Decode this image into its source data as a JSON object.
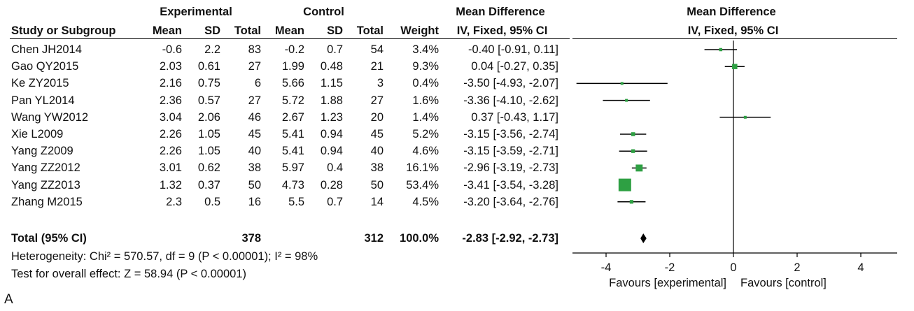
{
  "panel_label": "A",
  "headers": {
    "group_experimental": "Experimental",
    "group_control": "Control",
    "group_md": "Mean Difference",
    "group_plot": "Mean Difference",
    "study": "Study or Subgroup",
    "mean": "Mean",
    "sd": "SD",
    "total": "Total",
    "weight": "Weight",
    "method": "IV, Fixed, 95% CI",
    "plot_method": "IV, Fixed, 95% CI"
  },
  "totals_row": {
    "label": "Total (95% CI)",
    "exp_total": "378",
    "ctrl_total": "312",
    "weight": "100.0%",
    "ci_text": "-2.83 [-2.92, -2.73]"
  },
  "heterogeneity": "Heterogeneity: Chi² = 570.57, df = 9 (P < 0.00001); I² = 98%",
  "overall_effect": "Test for overall effect: Z = 58.94 (P < 0.00001)",
  "chart_data": {
    "type": "forest",
    "xlim": [
      -5,
      5
    ],
    "x_ticks": [
      -4,
      -2,
      0,
      2,
      4
    ],
    "x_tick_labels": [
      "-4",
      "-2",
      "0",
      "2",
      "4"
    ],
    "favours_left": "Favours [experimental]",
    "favours_right": "Favours [control]",
    "studies": [
      {
        "name": "Chen JH2014",
        "exp_mean": "-0.6",
        "exp_sd": "2.2",
        "exp_total": "83",
        "ctrl_mean": "-0.2",
        "ctrl_sd": "0.7",
        "ctrl_total": "54",
        "weight": "3.4%",
        "ci_text": "-0.40 [-0.91, 0.11]",
        "md": -0.4,
        "lo": -0.91,
        "hi": 0.11,
        "w": 3.4
      },
      {
        "name": "Gao QY2015",
        "exp_mean": "2.03",
        "exp_sd": "0.61",
        "exp_total": "27",
        "ctrl_mean": "1.99",
        "ctrl_sd": "0.48",
        "ctrl_total": "21",
        "weight": "9.3%",
        "ci_text": "0.04 [-0.27, 0.35]",
        "md": 0.04,
        "lo": -0.27,
        "hi": 0.35,
        "w": 9.3
      },
      {
        "name": "Ke ZY2015",
        "exp_mean": "2.16",
        "exp_sd": "0.75",
        "exp_total": "6",
        "ctrl_mean": "5.66",
        "ctrl_sd": "1.15",
        "ctrl_total": "3",
        "weight": "0.4%",
        "ci_text": "-3.50 [-4.93, -2.07]",
        "md": -3.5,
        "lo": -4.93,
        "hi": -2.07,
        "w": 0.4
      },
      {
        "name": "Pan YL2014",
        "exp_mean": "2.36",
        "exp_sd": "0.57",
        "exp_total": "27",
        "ctrl_mean": "5.72",
        "ctrl_sd": "1.88",
        "ctrl_total": "27",
        "weight": "1.6%",
        "ci_text": "-3.36 [-4.10, -2.62]",
        "md": -3.36,
        "lo": -4.1,
        "hi": -2.62,
        "w": 1.6
      },
      {
        "name": "Wang YW2012",
        "exp_mean": "3.04",
        "exp_sd": "2.06",
        "exp_total": "46",
        "ctrl_mean": "2.67",
        "ctrl_sd": "1.23",
        "ctrl_total": "20",
        "weight": "1.4%",
        "ci_text": "0.37 [-0.43, 1.17]",
        "md": 0.37,
        "lo": -0.43,
        "hi": 1.17,
        "w": 1.4
      },
      {
        "name": "Xie L2009",
        "exp_mean": "2.26",
        "exp_sd": "1.05",
        "exp_total": "45",
        "ctrl_mean": "5.41",
        "ctrl_sd": "0.94",
        "ctrl_total": "45",
        "weight": "5.2%",
        "ci_text": "-3.15 [-3.56, -2.74]",
        "md": -3.15,
        "lo": -3.56,
        "hi": -2.74,
        "w": 5.2
      },
      {
        "name": "Yang Z2009",
        "exp_mean": "2.26",
        "exp_sd": "1.05",
        "exp_total": "40",
        "ctrl_mean": "5.41",
        "ctrl_sd": "0.94",
        "ctrl_total": "40",
        "weight": "4.6%",
        "ci_text": "-3.15 [-3.59, -2.71]",
        "md": -3.15,
        "lo": -3.59,
        "hi": -2.71,
        "w": 4.6
      },
      {
        "name": "Yang ZZ2012",
        "exp_mean": "3.01",
        "exp_sd": "0.62",
        "exp_total": "38",
        "ctrl_mean": "5.97",
        "ctrl_sd": "0.4",
        "ctrl_total": "38",
        "weight": "16.1%",
        "ci_text": "-2.96 [-3.19, -2.73]",
        "md": -2.96,
        "lo": -3.19,
        "hi": -2.73,
        "w": 16.1
      },
      {
        "name": "Yang ZZ2013",
        "exp_mean": "1.32",
        "exp_sd": "0.37",
        "exp_total": "50",
        "ctrl_mean": "4.73",
        "ctrl_sd": "0.28",
        "ctrl_total": "50",
        "weight": "53.4%",
        "ci_text": "-3.41 [-3.54, -3.28]",
        "md": -3.41,
        "lo": -3.54,
        "hi": -3.28,
        "w": 53.4
      },
      {
        "name": "Zhang M2015",
        "exp_mean": "2.3",
        "exp_sd": "0.5",
        "exp_total": "16",
        "ctrl_mean": "5.5",
        "ctrl_sd": "0.7",
        "ctrl_total": "14",
        "weight": "4.5%",
        "ci_text": "-3.20 [-3.64, -2.76]",
        "md": -3.2,
        "lo": -3.64,
        "hi": -2.76,
        "w": 4.5
      }
    ],
    "pooled": {
      "md": -2.83,
      "lo": -2.92,
      "hi": -2.73
    },
    "colors": {
      "box": "#2ea043",
      "line": "#000000",
      "diamond": "#000000"
    }
  }
}
